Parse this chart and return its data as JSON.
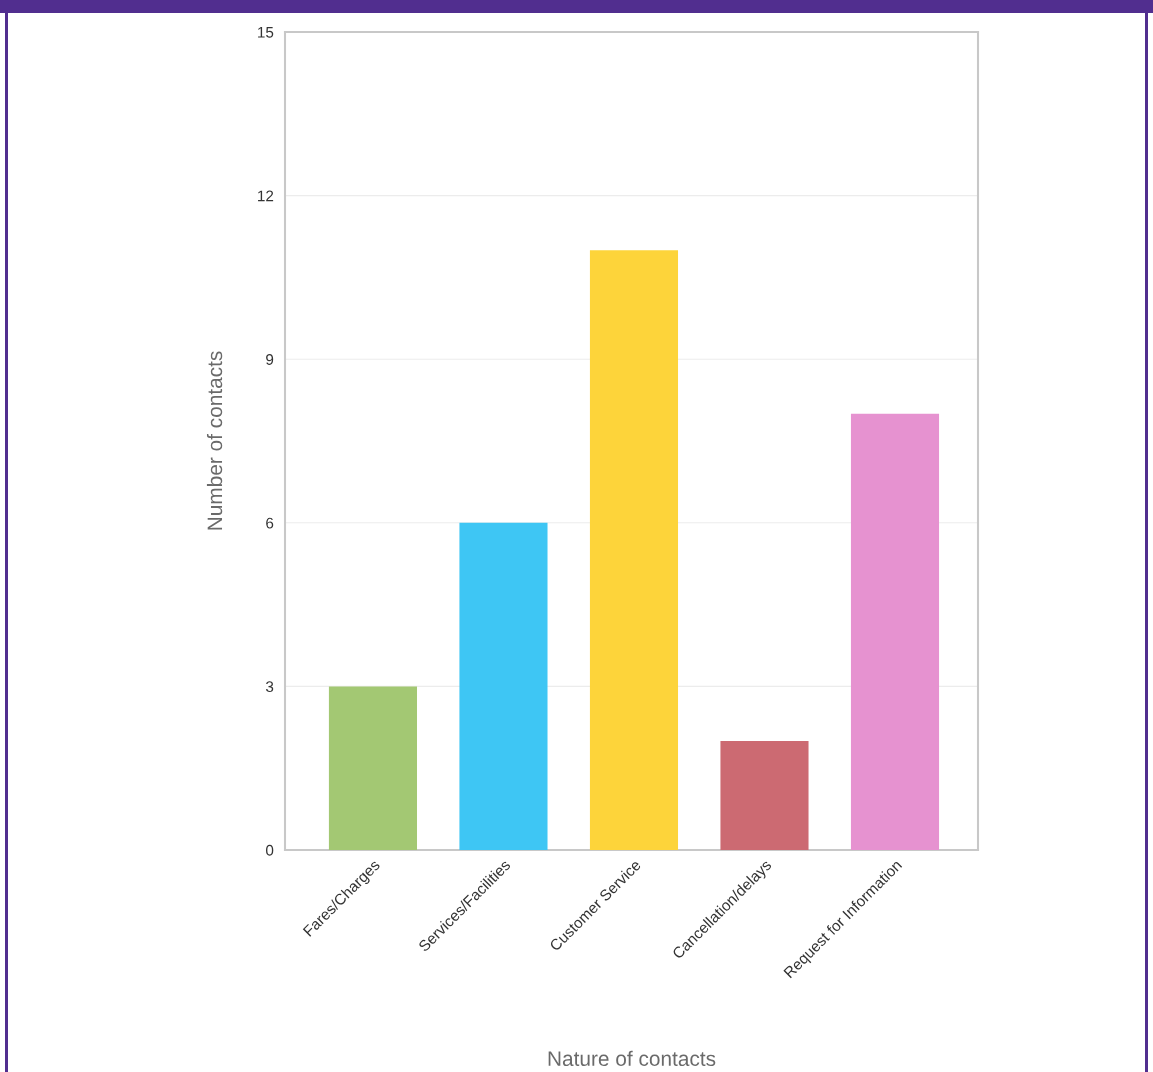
{
  "chart_data": {
    "type": "bar",
    "xlabel": "Nature of contacts",
    "ylabel": "Number of contacts",
    "categories": [
      "Fares/Charges",
      "Services/Facilities",
      "Customer Service",
      "Cancellation/delays",
      "Request for Information"
    ],
    "values": [
      3,
      6,
      11,
      2,
      8
    ],
    "colors": [
      "#a3c873",
      "#3ec6f4",
      "#fdd43a",
      "#cc6a72",
      "#e692d0"
    ],
    "ylim": [
      0,
      15
    ],
    "yticks": [
      0,
      3,
      6,
      9,
      12,
      15
    ],
    "grid": "y"
  }
}
